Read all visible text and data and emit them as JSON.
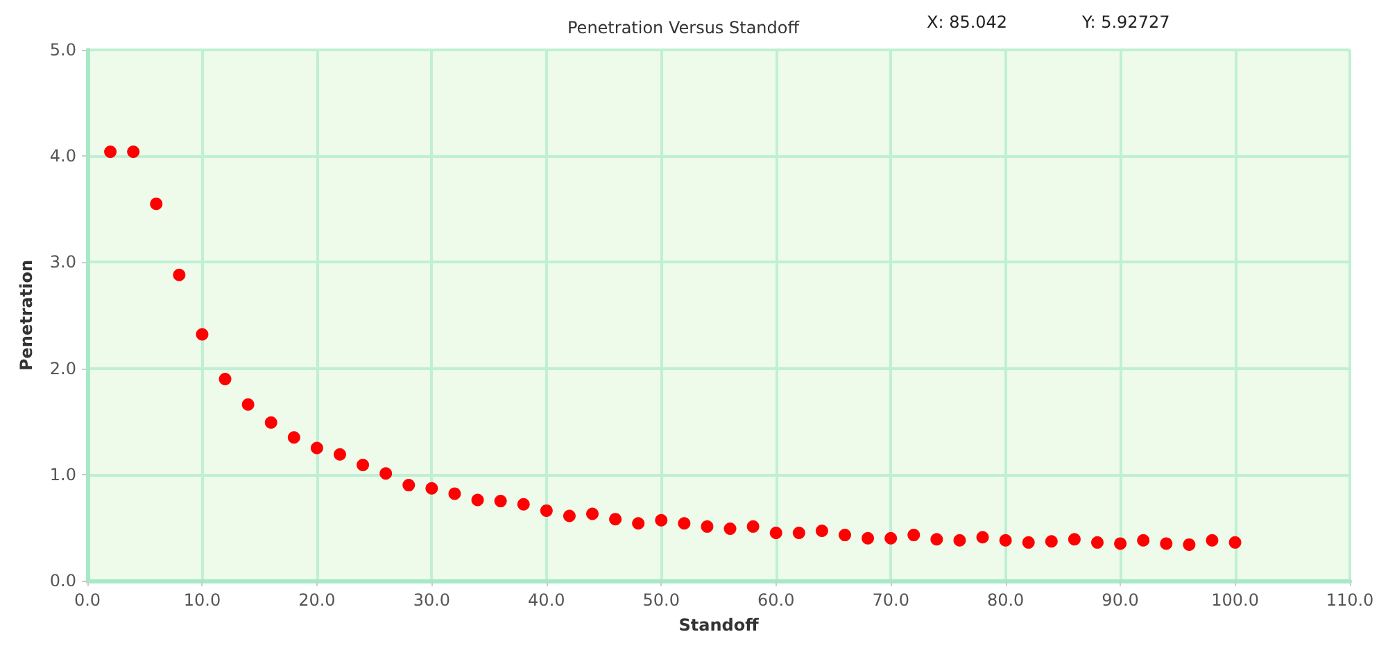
{
  "chart_data": {
    "type": "scatter",
    "title": "Penetration Versus Standoff",
    "xlabel": "Standoff",
    "ylabel": "Penetration",
    "annotations": [
      "X: 85.042",
      "Y: 5.92727"
    ],
    "x": [
      2,
      4,
      6,
      8,
      10,
      12,
      14,
      16,
      18,
      20,
      22,
      24,
      26,
      28,
      30,
      32,
      34,
      36,
      38,
      40,
      42,
      44,
      46,
      48,
      50,
      52,
      54,
      56,
      58,
      60,
      62,
      64,
      66,
      68,
      70,
      72,
      74,
      76,
      78,
      80,
      82,
      84,
      86,
      88,
      90,
      92,
      94,
      96,
      98,
      100
    ],
    "series": [
      {
        "color": "#ff0000",
        "values": [
          4.04,
          4.04,
          3.55,
          2.88,
          2.32,
          1.9,
          1.66,
          1.49,
          1.35,
          1.25,
          1.19,
          1.09,
          1.01,
          0.9,
          0.87,
          0.82,
          0.76,
          0.75,
          0.72,
          0.66,
          0.61,
          0.63,
          0.58,
          0.54,
          0.57,
          0.54,
          0.51,
          0.49,
          0.51,
          0.45,
          0.45,
          0.47,
          0.43,
          0.4,
          0.4,
          0.43,
          0.39,
          0.38,
          0.41,
          0.38,
          0.36,
          0.37,
          0.39,
          0.36,
          0.35,
          0.38,
          0.35,
          0.34,
          0.38,
          0.36
        ]
      }
    ],
    "xlim": [
      0,
      110
    ],
    "xticks": [
      {
        "value": 0,
        "label": "0.0"
      },
      {
        "value": 10,
        "label": "10.0"
      },
      {
        "value": 20,
        "label": "20.0"
      },
      {
        "value": 30,
        "label": "30.0"
      },
      {
        "value": 40,
        "label": "40.0"
      },
      {
        "value": 50,
        "label": "50.0"
      },
      {
        "value": 60,
        "label": "60.0"
      },
      {
        "value": 70,
        "label": "70.0"
      },
      {
        "value": 80,
        "label": "80.0"
      },
      {
        "value": 90,
        "label": "90.0"
      },
      {
        "value": 100,
        "label": "100.0"
      },
      {
        "value": 110,
        "label": "110.0"
      }
    ],
    "ylim": [
      0,
      5
    ],
    "yticks": [
      {
        "value": 0,
        "label": "0.0"
      },
      {
        "value": 1,
        "label": "1.0"
      },
      {
        "value": 2,
        "label": "2.0"
      },
      {
        "value": 3,
        "label": "3.0"
      },
      {
        "value": 4,
        "label": "4.0"
      },
      {
        "value": 5,
        "label": "5.0"
      }
    ],
    "grid": true,
    "marker": "circle"
  }
}
